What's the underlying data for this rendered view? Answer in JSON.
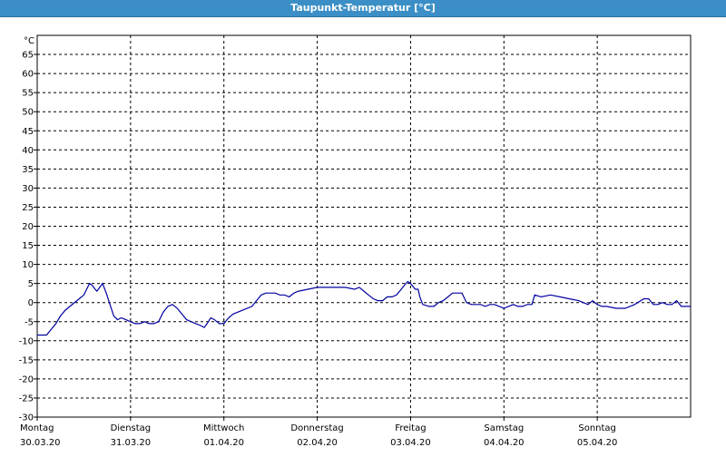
{
  "window": {
    "title": "Taupunkt-Temperatur [°C]"
  },
  "chart_data": {
    "type": "line",
    "title": "Taupunkt-Temperatur [°C]",
    "unit_label": "°C",
    "ylim": [
      -30,
      70
    ],
    "ytick_labels": [
      "65",
      "60",
      "55",
      "50",
      "45",
      "40",
      "35",
      "30",
      "25",
      "20",
      "15",
      "10",
      "5",
      "0",
      "-5",
      "-10",
      "-15",
      "-20",
      "-25",
      "-30"
    ],
    "ytick_values": [
      65,
      60,
      55,
      50,
      45,
      40,
      35,
      30,
      25,
      20,
      15,
      10,
      5,
      0,
      -5,
      -10,
      -15,
      -20,
      -25,
      -30
    ],
    "grid": true,
    "days": [
      {
        "weekday": "Montag",
        "date": "30.03.20"
      },
      {
        "weekday": "Dienstag",
        "date": "31.03.20"
      },
      {
        "weekday": "Mittwoch",
        "date": "01.04.20"
      },
      {
        "weekday": "Donnerstag",
        "date": "02.04.20"
      },
      {
        "weekday": "Freitag",
        "date": "03.04.20"
      },
      {
        "weekday": "Samstag",
        "date": "04.04.20"
      },
      {
        "weekday": "Sonntag",
        "date": "05.04.20"
      }
    ],
    "xlim_days": [
      0,
      7
    ],
    "series": [
      {
        "color": "#0000a0",
        "points": [
          [
            0.0,
            -8.5
          ],
          [
            0.1,
            -8.5
          ],
          [
            0.15,
            -7.0
          ],
          [
            0.2,
            -5.5
          ],
          [
            0.25,
            -3.5
          ],
          [
            0.3,
            -2.0
          ],
          [
            0.35,
            -1.0
          ],
          [
            0.45,
            1.0
          ],
          [
            0.5,
            2.0
          ],
          [
            0.53,
            3.5
          ],
          [
            0.56,
            5.0
          ],
          [
            0.59,
            4.5
          ],
          [
            0.62,
            3.5
          ],
          [
            0.64,
            3.0
          ],
          [
            0.67,
            4.0
          ],
          [
            0.7,
            5.0
          ],
          [
            0.74,
            2.5
          ],
          [
            0.78,
            -0.5
          ],
          [
            0.82,
            -3.5
          ],
          [
            0.86,
            -4.5
          ],
          [
            0.9,
            -4.0
          ],
          [
            0.95,
            -4.5
          ],
          [
            1.0,
            -5.0
          ],
          [
            1.05,
            -5.5
          ],
          [
            1.1,
            -5.5
          ],
          [
            1.15,
            -5.0
          ],
          [
            1.2,
            -5.5
          ],
          [
            1.25,
            -5.5
          ],
          [
            1.3,
            -5.0
          ],
          [
            1.35,
            -2.5
          ],
          [
            1.4,
            -1.0
          ],
          [
            1.45,
            -0.5
          ],
          [
            1.5,
            -1.5
          ],
          [
            1.55,
            -3.0
          ],
          [
            1.6,
            -4.5
          ],
          [
            1.65,
            -5.0
          ],
          [
            1.7,
            -5.5
          ],
          [
            1.75,
            -6.0
          ],
          [
            1.79,
            -6.5
          ],
          [
            1.82,
            -5.5
          ],
          [
            1.86,
            -4.0
          ],
          [
            1.9,
            -4.5
          ],
          [
            1.95,
            -5.5
          ],
          [
            2.0,
            -5.5
          ],
          [
            2.05,
            -4.0
          ],
          [
            2.1,
            -3.0
          ],
          [
            2.2,
            -2.0
          ],
          [
            2.3,
            -1.0
          ],
          [
            2.35,
            0.5
          ],
          [
            2.4,
            2.0
          ],
          [
            2.45,
            2.5
          ],
          [
            2.55,
            2.5
          ],
          [
            2.6,
            2.0
          ],
          [
            2.65,
            2.0
          ],
          [
            2.7,
            1.5
          ],
          [
            2.75,
            2.5
          ],
          [
            2.8,
            3.0
          ],
          [
            2.9,
            3.5
          ],
          [
            3.0,
            4.0
          ],
          [
            3.1,
            4.0
          ],
          [
            3.2,
            4.0
          ],
          [
            3.3,
            4.0
          ],
          [
            3.4,
            3.5
          ],
          [
            3.45,
            4.0
          ],
          [
            3.5,
            3.0
          ],
          [
            3.55,
            2.0
          ],
          [
            3.6,
            1.0
          ],
          [
            3.65,
            0.5
          ],
          [
            3.7,
            0.5
          ],
          [
            3.75,
            1.5
          ],
          [
            3.8,
            1.5
          ],
          [
            3.85,
            2.0
          ],
          [
            3.9,
            3.5
          ],
          [
            3.95,
            5.0
          ],
          [
            3.97,
            5.5
          ],
          [
            4.0,
            5.0
          ],
          [
            4.05,
            3.5
          ],
          [
            4.08,
            3.5
          ],
          [
            4.1,
            1.5
          ],
          [
            4.13,
            -0.5
          ],
          [
            4.2,
            -1.0
          ],
          [
            4.25,
            -1.0
          ],
          [
            4.3,
            0.0
          ],
          [
            4.35,
            0.5
          ],
          [
            4.4,
            1.5
          ],
          [
            4.45,
            2.5
          ],
          [
            4.5,
            2.5
          ],
          [
            4.55,
            2.5
          ],
          [
            4.6,
            0.0
          ],
          [
            4.65,
            -0.5
          ],
          [
            4.7,
            -0.5
          ],
          [
            4.75,
            -0.5
          ],
          [
            4.8,
            -1.0
          ],
          [
            4.85,
            -0.5
          ],
          [
            4.9,
            -0.5
          ],
          [
            4.95,
            -1.0
          ],
          [
            5.0,
            -1.5
          ],
          [
            5.05,
            -1.0
          ],
          [
            5.1,
            -0.5
          ],
          [
            5.15,
            -1.0
          ],
          [
            5.2,
            -1.0
          ],
          [
            5.25,
            -0.5
          ],
          [
            5.3,
            -0.5
          ],
          [
            5.33,
            2.0
          ],
          [
            5.4,
            1.5
          ],
          [
            5.5,
            2.0
          ],
          [
            5.6,
            1.5
          ],
          [
            5.7,
            1.0
          ],
          [
            5.8,
            0.5
          ],
          [
            5.9,
            -0.5
          ],
          [
            5.95,
            0.5
          ],
          [
            6.0,
            -0.5
          ],
          [
            6.05,
            -1.0
          ],
          [
            6.1,
            -1.0
          ],
          [
            6.2,
            -1.5
          ],
          [
            6.3,
            -1.5
          ],
          [
            6.4,
            -0.5
          ],
          [
            6.5,
            1.0
          ],
          [
            6.55,
            1.0
          ],
          [
            6.6,
            -0.5
          ],
          [
            6.65,
            -0.5
          ],
          [
            6.7,
            0.0
          ],
          [
            6.75,
            -0.5
          ],
          [
            6.8,
            -0.5
          ],
          [
            6.85,
            0.5
          ],
          [
            6.9,
            -1.0
          ],
          [
            7.0,
            -1.0
          ]
        ]
      }
    ]
  }
}
